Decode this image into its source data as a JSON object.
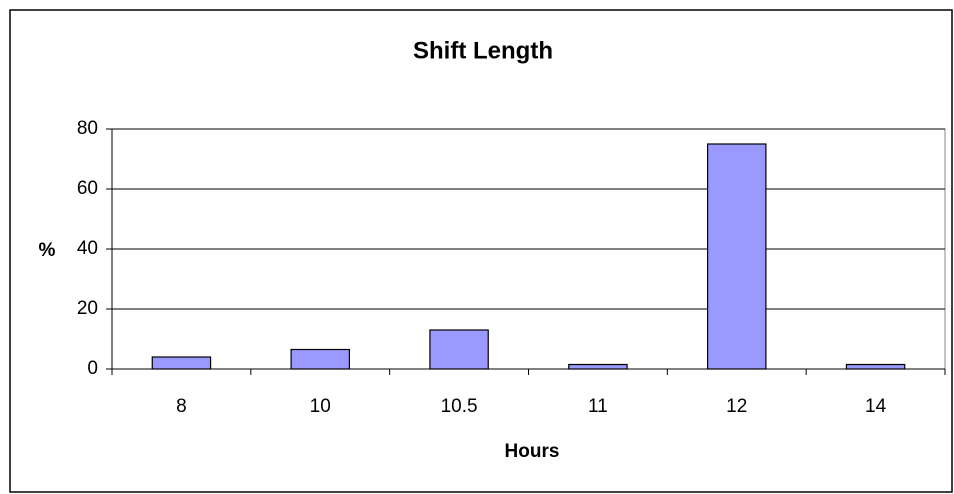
{
  "chart_data": {
    "type": "bar",
    "title": "Shift Length",
    "x_label": "Hours",
    "y_label": "%",
    "categories": [
      "8",
      "10",
      "10.5",
      "11",
      "12",
      "14"
    ],
    "values": [
      4,
      6.5,
      13,
      1.5,
      75,
      1.5
    ],
    "color": "#9999ff",
    "ylim": [
      0,
      80
    ],
    "yticks": [
      0,
      20,
      40,
      60,
      80
    ],
    "grid": true
  }
}
